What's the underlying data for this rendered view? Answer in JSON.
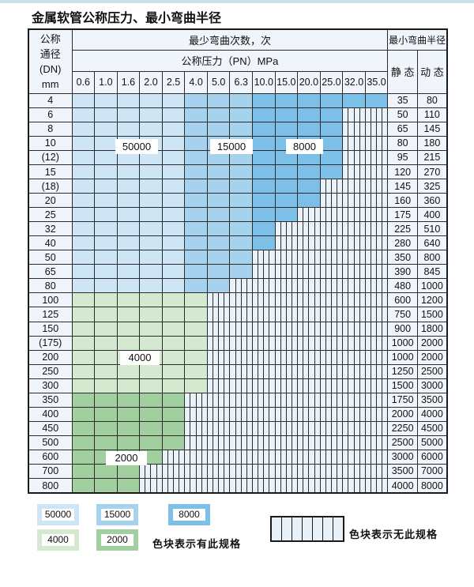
{
  "title": "金属软管公称压力、最小弯曲半径",
  "table": {
    "header": {
      "dn_lines": [
        "公称",
        "通径",
        "(DN)",
        "mm"
      ],
      "bend_cycles_label": "最少弯曲次数，次",
      "pressure_label": "公称压力（PN）MPa",
      "radius_label": "最小弯曲半径",
      "static_label": "静 态",
      "dynamic_label": "动 态",
      "pressures": [
        "0.6",
        "1.0",
        "1.6",
        "2.0",
        "2.5",
        "4.0",
        "5.0",
        "6.3",
        "10.0",
        "15.0",
        "20.0",
        "25.0",
        "32.0",
        "35.0"
      ]
    },
    "rows": [
      {
        "dn": "4",
        "colored": 14,
        "shade": "blue",
        "static": "35",
        "dynamic": "80"
      },
      {
        "dn": "6",
        "colored": 12,
        "shade": "blue",
        "static": "50",
        "dynamic": "110"
      },
      {
        "dn": "8",
        "colored": 12,
        "shade": "blue",
        "static": "65",
        "dynamic": "145"
      },
      {
        "dn": "10",
        "colored": 12,
        "shade": "blue",
        "static": "80",
        "dynamic": "180"
      },
      {
        "dn": "(12)",
        "colored": 12,
        "shade": "blue",
        "static": "95",
        "dynamic": "215"
      },
      {
        "dn": "15",
        "colored": 12,
        "shade": "blue",
        "static": "120",
        "dynamic": "270"
      },
      {
        "dn": "(18)",
        "colored": 11,
        "shade": "blue",
        "static": "145",
        "dynamic": "325"
      },
      {
        "dn": "20",
        "colored": 11,
        "shade": "blue",
        "static": "160",
        "dynamic": "360"
      },
      {
        "dn": "25",
        "colored": 10,
        "shade": "blue",
        "static": "175",
        "dynamic": "400"
      },
      {
        "dn": "32",
        "colored": 9,
        "shade": "blue",
        "static": "225",
        "dynamic": "510"
      },
      {
        "dn": "40",
        "colored": 9,
        "shade": "blue",
        "static": "280",
        "dynamic": "640"
      },
      {
        "dn": "50",
        "colored": 8,
        "shade": "blue",
        "static": "350",
        "dynamic": "800"
      },
      {
        "dn": "65",
        "colored": 8,
        "shade": "blue",
        "static": "390",
        "dynamic": "845"
      },
      {
        "dn": "80",
        "colored": 7,
        "shade": "blue",
        "static": "480",
        "dynamic": "1000"
      },
      {
        "dn": "100",
        "colored": 6,
        "shade": "green-light",
        "static": "600",
        "dynamic": "1200"
      },
      {
        "dn": "125",
        "colored": 6,
        "shade": "green-light",
        "static": "750",
        "dynamic": "1500"
      },
      {
        "dn": "150",
        "colored": 6,
        "shade": "green-light",
        "static": "900",
        "dynamic": "1800"
      },
      {
        "dn": "(175)",
        "colored": 6,
        "shade": "green-light",
        "static": "1000",
        "dynamic": "2000"
      },
      {
        "dn": "200",
        "colored": 6,
        "shade": "green-light",
        "static": "1000",
        "dynamic": "2000"
      },
      {
        "dn": "250",
        "colored": 6,
        "shade": "green-light",
        "static": "1250",
        "dynamic": "2500"
      },
      {
        "dn": "300",
        "colored": 6,
        "shade": "green-light",
        "static": "1500",
        "dynamic": "3000"
      },
      {
        "dn": "350",
        "colored": 5,
        "shade": "green-dark",
        "static": "1750",
        "dynamic": "3500"
      },
      {
        "dn": "400",
        "colored": 5,
        "shade": "green-dark",
        "static": "2000",
        "dynamic": "4000"
      },
      {
        "dn": "450",
        "colored": 5,
        "shade": "green-dark",
        "static": "2250",
        "dynamic": "4500"
      },
      {
        "dn": "500",
        "colored": 5,
        "shade": "green-dark",
        "static": "2500",
        "dynamic": "5000"
      },
      {
        "dn": "600",
        "colored": 4,
        "shade": "green-dark",
        "static": "3000",
        "dynamic": "6000"
      },
      {
        "dn": "700",
        "colored": 3,
        "shade": "green-dark",
        "static": "3500",
        "dynamic": "7000"
      },
      {
        "dn": "800",
        "colored": 3,
        "shade": "green-dark",
        "static": "4000",
        "dynamic": "8000"
      }
    ]
  },
  "overlay_labels": [
    {
      "value": "50000"
    },
    {
      "value": "15000"
    },
    {
      "value": "8000"
    },
    {
      "value": "4000"
    },
    {
      "value": "2000"
    }
  ],
  "legend": {
    "items": [
      {
        "value": "50000",
        "color": "#cde5f5"
      },
      {
        "value": "15000",
        "color": "#a6d2ee"
      },
      {
        "value": "8000",
        "color": "#7cbfe7"
      },
      {
        "value": "4000",
        "color": "#d5e8d0"
      },
      {
        "value": "2000",
        "color": "#a1cfa0"
      }
    ],
    "available_note": "色块表示有此规格",
    "unavailable_note": "色块表示无此规格"
  },
  "colors": {
    "c50000": "#cde5f5",
    "c15000": "#a6d2ee",
    "c8000": "#7cbfe7",
    "c4000": "#d5e8d0",
    "c2000": "#a1cfa0",
    "stripe_bg": "#eaf2f9",
    "grid": "#2b2b2b"
  }
}
